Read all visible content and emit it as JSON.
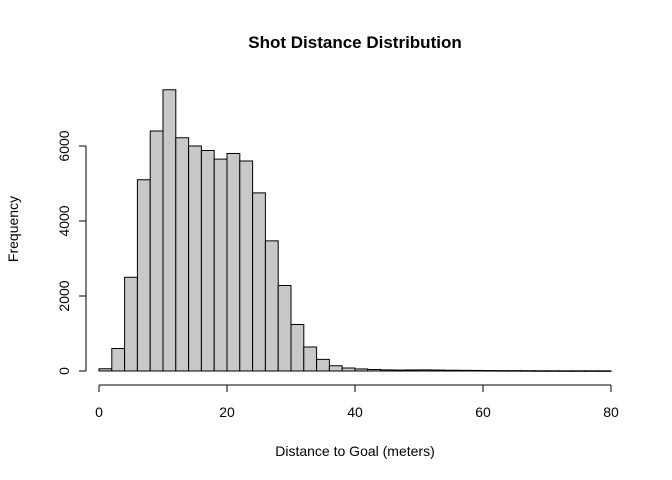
{
  "chart_data": {
    "type": "bar",
    "title": "Shot Distance Distribution",
    "xlabel": "Distance to Goal (meters)",
    "ylabel": "Frequency",
    "xlim": [
      0,
      80
    ],
    "ylim": [
      0,
      7500
    ],
    "x_ticks": [
      0,
      20,
      40,
      60,
      80
    ],
    "y_ticks": [
      0,
      2000,
      4000,
      6000
    ],
    "bin_width": 2,
    "bins_start": [
      0,
      2,
      4,
      6,
      8,
      10,
      12,
      14,
      16,
      18,
      20,
      22,
      24,
      26,
      28,
      30,
      32,
      34,
      36,
      38,
      40,
      42,
      44,
      46,
      48,
      50,
      52,
      54,
      56,
      58,
      60,
      62,
      64,
      66,
      68,
      70,
      72,
      74,
      76,
      78
    ],
    "values": [
      60,
      600,
      2500,
      5100,
      6400,
      7500,
      6220,
      6000,
      5880,
      5650,
      5800,
      5600,
      4750,
      3470,
      2280,
      1240,
      640,
      310,
      140,
      80,
      55,
      40,
      30,
      25,
      28,
      30,
      25,
      20,
      18,
      15,
      12,
      10,
      10,
      8,
      6,
      6,
      5,
      5,
      5,
      4
    ],
    "grid": false,
    "legend": "none"
  }
}
